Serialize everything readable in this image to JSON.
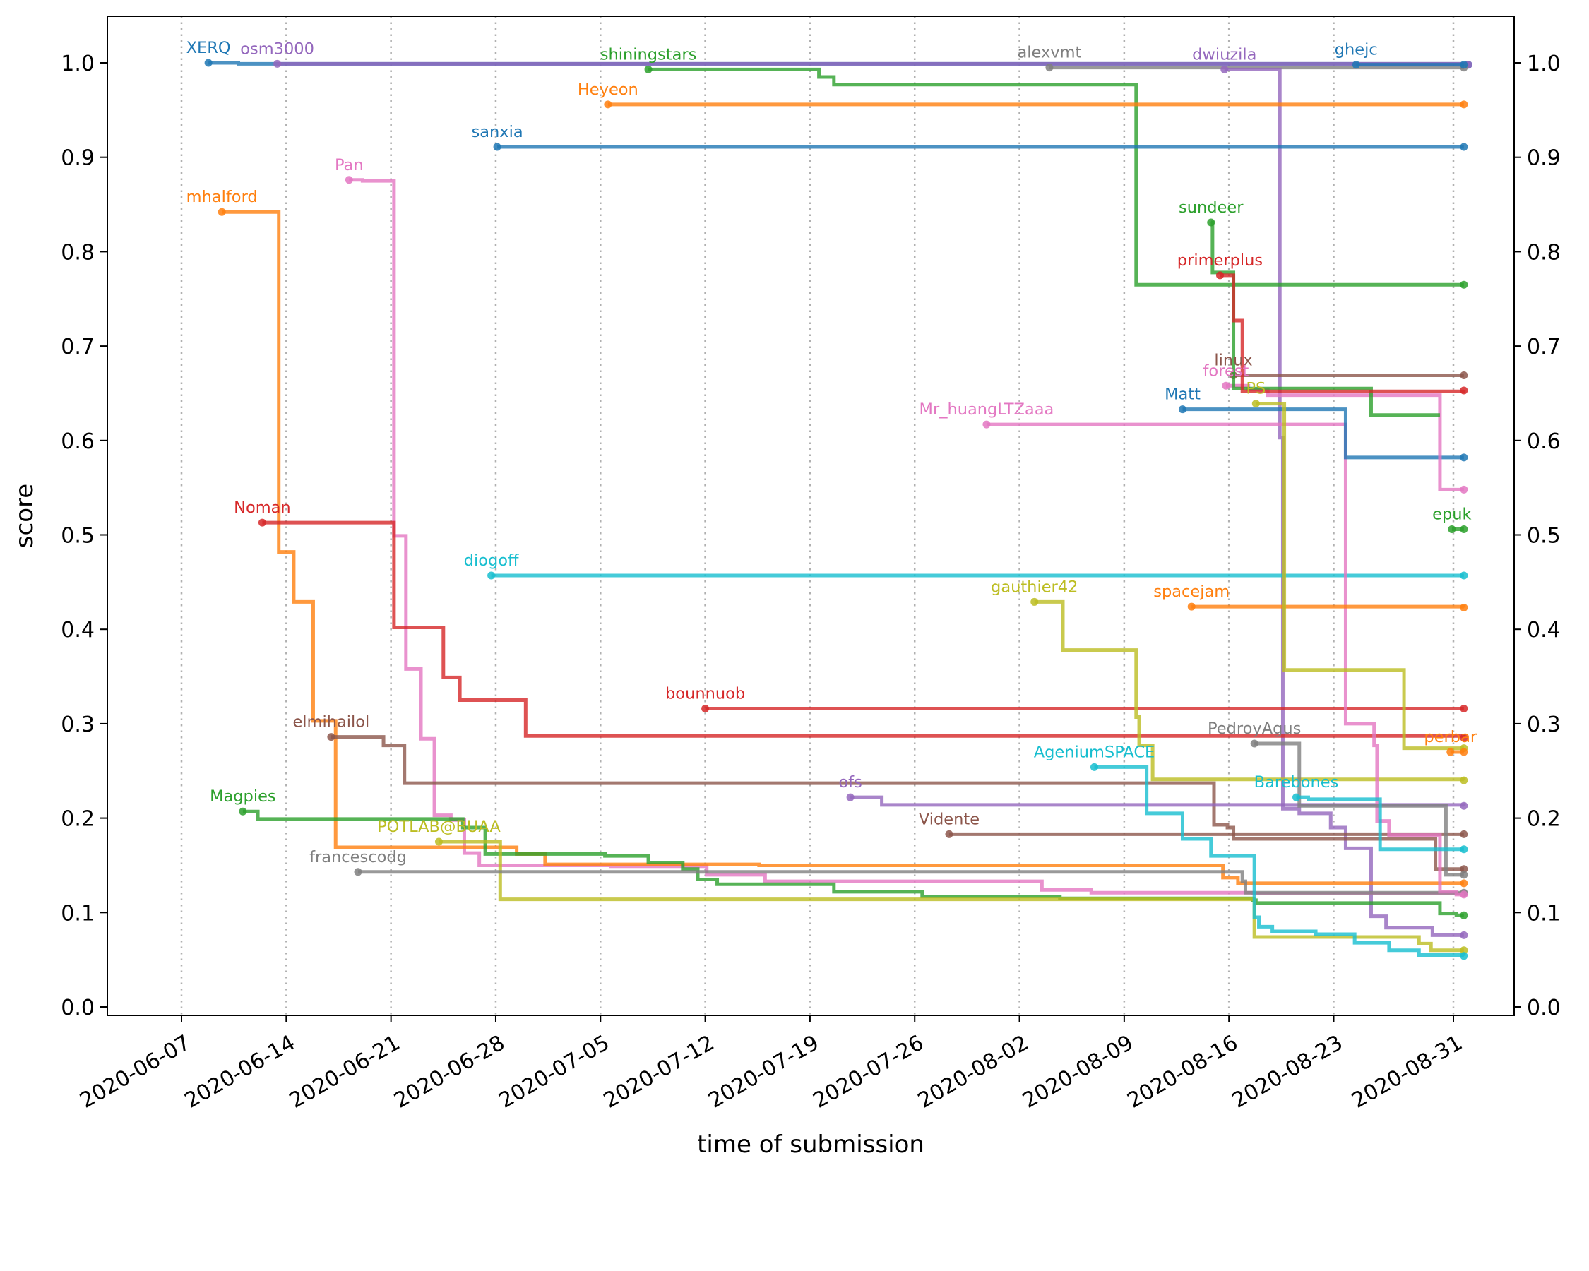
{
  "chart_data": {
    "type": "line",
    "step": "post",
    "title": "",
    "xlabel": "time of submission",
    "ylabel": "score",
    "x_origin_date": "2020-06-07",
    "x_unit": "days since 2020-06-07",
    "xlim": [
      -5,
      90
    ],
    "ylim": [
      -0.008,
      1.05
    ],
    "grid": "vertical dotted at x ticks",
    "legend": "none (inline labels at series start)",
    "x_ticks": [
      {
        "day": 0,
        "label": "2020-06-07"
      },
      {
        "day": 7,
        "label": "2020-06-14"
      },
      {
        "day": 14,
        "label": "2020-06-21"
      },
      {
        "day": 21,
        "label": "2020-06-28"
      },
      {
        "day": 28,
        "label": "2020-07-05"
      },
      {
        "day": 35,
        "label": "2020-07-12"
      },
      {
        "day": 42,
        "label": "2020-07-19"
      },
      {
        "day": 49,
        "label": "2020-07-26"
      },
      {
        "day": 56,
        "label": "2020-08-02"
      },
      {
        "day": 63,
        "label": "2020-08-09"
      },
      {
        "day": 70,
        "label": "2020-08-16"
      },
      {
        "day": 77,
        "label": "2020-08-23"
      },
      {
        "day": 85,
        "label": "2020-08-31"
      }
    ],
    "y_ticks": [
      {
        "value": 0.0,
        "label": "0.0"
      },
      {
        "value": 0.1,
        "label": "0.1"
      },
      {
        "value": 0.2,
        "label": "0.2"
      },
      {
        "value": 0.3,
        "label": "0.3"
      },
      {
        "value": 0.4,
        "label": "0.4"
      },
      {
        "value": 0.5,
        "label": "0.5"
      },
      {
        "value": 0.6,
        "label": "0.6"
      },
      {
        "value": 0.7,
        "label": "0.7"
      },
      {
        "value": 0.8,
        "label": "0.8"
      },
      {
        "value": 0.9,
        "label": "0.9"
      },
      {
        "value": 1.0,
        "label": "1.0"
      }
    ],
    "end_day": 85.7,
    "series": [
      {
        "name": "XERQ",
        "color": "#1f77b4",
        "points": [
          [
            1.8,
            1.0
          ],
          [
            3.8,
            0.999
          ],
          [
            86,
            0.998
          ]
        ]
      },
      {
        "name": "osm3000",
        "color": "#9467bd",
        "points": [
          [
            6.4,
            0.999
          ],
          [
            86,
            0.998
          ]
        ]
      },
      {
        "name": "alexvmt",
        "color": "#7f7f7f",
        "points": [
          [
            58,
            0.995
          ]
        ]
      },
      {
        "name": "dwiuzila",
        "color": "#9467bd",
        "points": [
          [
            69.7,
            0.993
          ],
          [
            73.4,
            0.603
          ],
          [
            73.6,
            0.21
          ],
          [
            74.7,
            0.205
          ],
          [
            76.8,
            0.19
          ],
          [
            77.8,
            0.168
          ],
          [
            79.5,
            0.096
          ],
          [
            80.5,
            0.084
          ],
          [
            83.6,
            0.076
          ]
        ]
      },
      {
        "name": "ghejc",
        "color": "#1f77b4",
        "points": [
          [
            78.5,
            0.998
          ]
        ]
      },
      {
        "name": "shiningstars",
        "color": "#2ca02c",
        "points": [
          [
            31.2,
            0.993
          ],
          [
            42.6,
            0.985
          ],
          [
            43.6,
            0.977
          ],
          [
            63.8,
            0.765
          ]
        ]
      },
      {
        "name": "Heyeon",
        "color": "#ff7f0e",
        "points": [
          [
            28.5,
            0.956
          ]
        ]
      },
      {
        "name": "sanxia",
        "color": "#1f77b4",
        "points": [
          [
            21.1,
            0.911
          ]
        ]
      },
      {
        "name": "Pan",
        "color": "#e377c2",
        "points": [
          [
            11.2,
            0.876
          ],
          [
            12.1,
            0.875
          ],
          [
            14.2,
            0.499
          ],
          [
            15.0,
            0.358
          ],
          [
            16.0,
            0.284
          ],
          [
            16.9,
            0.203
          ],
          [
            18.0,
            0.198
          ],
          [
            18.9,
            0.163
          ],
          [
            19.9,
            0.15
          ],
          [
            28.7,
            0.149
          ],
          [
            35.1,
            0.14
          ],
          [
            39.0,
            0.133
          ],
          [
            57.5,
            0.124
          ],
          [
            60.8,
            0.121
          ],
          [
            71.6,
            0.12
          ]
        ]
      },
      {
        "name": "mhalford",
        "color": "#ff7f0e",
        "points": [
          [
            2.7,
            0.842
          ],
          [
            6.5,
            0.482
          ],
          [
            7.5,
            0.429
          ],
          [
            8.8,
            0.303
          ],
          [
            10.3,
            0.169
          ],
          [
            22.4,
            0.162
          ],
          [
            24.3,
            0.151
          ],
          [
            38.6,
            0.15
          ],
          [
            69.6,
            0.137
          ],
          [
            70.6,
            0.131
          ]
        ]
      },
      {
        "name": "Noman",
        "color": "#d62728",
        "points": [
          [
            5.4,
            0.513
          ],
          [
            14.2,
            0.402
          ],
          [
            17.5,
            0.349
          ],
          [
            18.6,
            0.325
          ],
          [
            23.0,
            0.287
          ],
          [
            85.7,
            0.285
          ]
        ]
      },
      {
        "name": "elmihailol",
        "color": "#8c564b",
        "points": [
          [
            10.0,
            0.286
          ],
          [
            13.5,
            0.277
          ],
          [
            14.9,
            0.237
          ],
          [
            69.0,
            0.193
          ],
          [
            69.9,
            0.19
          ],
          [
            70.3,
            0.178
          ],
          [
            83.8,
            0.146
          ]
        ]
      },
      {
        "name": "Magpies",
        "color": "#2ca02c",
        "points": [
          [
            4.1,
            0.207
          ],
          [
            5.1,
            0.199
          ],
          [
            18.8,
            0.19
          ],
          [
            20.3,
            0.162
          ],
          [
            28.3,
            0.16
          ],
          [
            31.2,
            0.153
          ],
          [
            33.5,
            0.146
          ],
          [
            34.5,
            0.135
          ],
          [
            35.8,
            0.13
          ],
          [
            43.6,
            0.122
          ],
          [
            49.5,
            0.117
          ],
          [
            58.7,
            0.115
          ],
          [
            71.6,
            0.113
          ],
          [
            71.8,
            0.11
          ],
          [
            84.1,
            0.099
          ],
          [
            85.2,
            0.097
          ]
        ]
      },
      {
        "name": "POTLAB@BUAA",
        "color": "#bcbd22",
        "points": [
          [
            17.2,
            0.175
          ],
          [
            21.3,
            0.114
          ],
          [
            71.7,
            0.074
          ],
          [
            82.7,
            0.067
          ],
          [
            83.5,
            0.06
          ]
        ]
      },
      {
        "name": "francescodg",
        "color": "#7f7f7f",
        "points": [
          [
            11.8,
            0.143
          ],
          [
            70.9,
            0.133
          ],
          [
            71.1,
            0.121
          ]
        ]
      },
      {
        "name": "diogoff",
        "color": "#17becf",
        "points": [
          [
            20.7,
            0.457
          ]
        ]
      },
      {
        "name": "bounnuob",
        "color": "#d62728",
        "points": [
          [
            35.0,
            0.316
          ]
        ]
      },
      {
        "name": "ofs",
        "color": "#9467bd",
        "points": [
          [
            44.7,
            0.222
          ],
          [
            46.8,
            0.214
          ],
          [
            85.7,
            0.213
          ]
        ]
      },
      {
        "name": "Vidente",
        "color": "#8c564b",
        "points": [
          [
            51.3,
            0.183
          ]
        ]
      },
      {
        "name": "gauthier42",
        "color": "#bcbd22",
        "points": [
          [
            57.0,
            0.429
          ],
          [
            58.9,
            0.378
          ],
          [
            63.8,
            0.307
          ],
          [
            64.0,
            0.277
          ],
          [
            64.9,
            0.241
          ],
          [
            85.7,
            0.24
          ]
        ]
      },
      {
        "name": "Mr_huangLTZaaa",
        "color": "#e377c2",
        "points": [
          [
            53.8,
            0.617
          ],
          [
            77.8,
            0.3
          ],
          [
            79.7,
            0.277
          ],
          [
            79.9,
            0.197
          ],
          [
            80.7,
            0.182
          ],
          [
            84.1,
            0.122
          ],
          [
            85.2,
            0.119
          ]
        ]
      },
      {
        "name": "spacejam",
        "color": "#ff7f0e",
        "points": [
          [
            67.5,
            0.424
          ],
          [
            85.7,
            0.423
          ]
        ]
      },
      {
        "name": "AgeniumSPACE",
        "color": "#17becf",
        "points": [
          [
            61.0,
            0.254
          ],
          [
            64.5,
            0.205
          ],
          [
            66.9,
            0.178
          ],
          [
            68.8,
            0.16
          ],
          [
            71.7,
            0.095
          ],
          [
            72.0,
            0.085
          ],
          [
            72.9,
            0.08
          ],
          [
            75.8,
            0.077
          ],
          [
            78.4,
            0.068
          ],
          [
            80.7,
            0.06
          ],
          [
            82.7,
            0.055
          ],
          [
            85.7,
            0.054
          ]
        ]
      },
      {
        "name": "Matt",
        "color": "#1f77b4",
        "points": [
          [
            66.9,
            0.633
          ],
          [
            77.8,
            0.582
          ]
        ]
      },
      {
        "name": "linux",
        "color": "#8c564b",
        "points": [
          [
            70.3,
            0.669
          ]
        ]
      },
      {
        "name": "forest",
        "color": "#e377c2",
        "points": [
          [
            69.8,
            0.658
          ],
          [
            71.3,
            0.654
          ],
          [
            72.6,
            0.648
          ],
          [
            84.1,
            0.548
          ]
        ]
      },
      {
        "name": "PS",
        "color": "#bcbd22",
        "points": [
          [
            71.8,
            0.639
          ],
          [
            73.7,
            0.357
          ],
          [
            81.7,
            0.274
          ]
        ]
      },
      {
        "name": "sundeer",
        "color": "#2ca02c",
        "points": [
          [
            68.8,
            0.831
          ],
          [
            68.9,
            0.778
          ],
          [
            70.3,
            0.655
          ],
          [
            79.5,
            0.627
          ],
          [
            84.1,
            0.627
          ]
        ],
        "open_end": true
      },
      {
        "name": "primerplus",
        "color": "#d62728",
        "points": [
          [
            69.4,
            0.775
          ],
          [
            70.3,
            0.727
          ],
          [
            70.9,
            0.652
          ],
          [
            85.7,
            0.653
          ]
        ]
      },
      {
        "name": "PedroyAgus",
        "color": "#7f7f7f",
        "points": [
          [
            71.7,
            0.279
          ],
          [
            74.7,
            0.213
          ],
          [
            84.5,
            0.14
          ]
        ]
      },
      {
        "name": "Barebones",
        "color": "#17becf",
        "points": [
          [
            74.5,
            0.222
          ],
          [
            75.3,
            0.22
          ],
          [
            80.1,
            0.167
          ]
        ]
      },
      {
        "name": "perbar",
        "color": "#ff7f0e",
        "points": [
          [
            84.8,
            0.27
          ]
        ]
      },
      {
        "name": "epuk",
        "color": "#2ca02c",
        "points": [
          [
            84.9,
            0.506
          ]
        ]
      }
    ]
  }
}
